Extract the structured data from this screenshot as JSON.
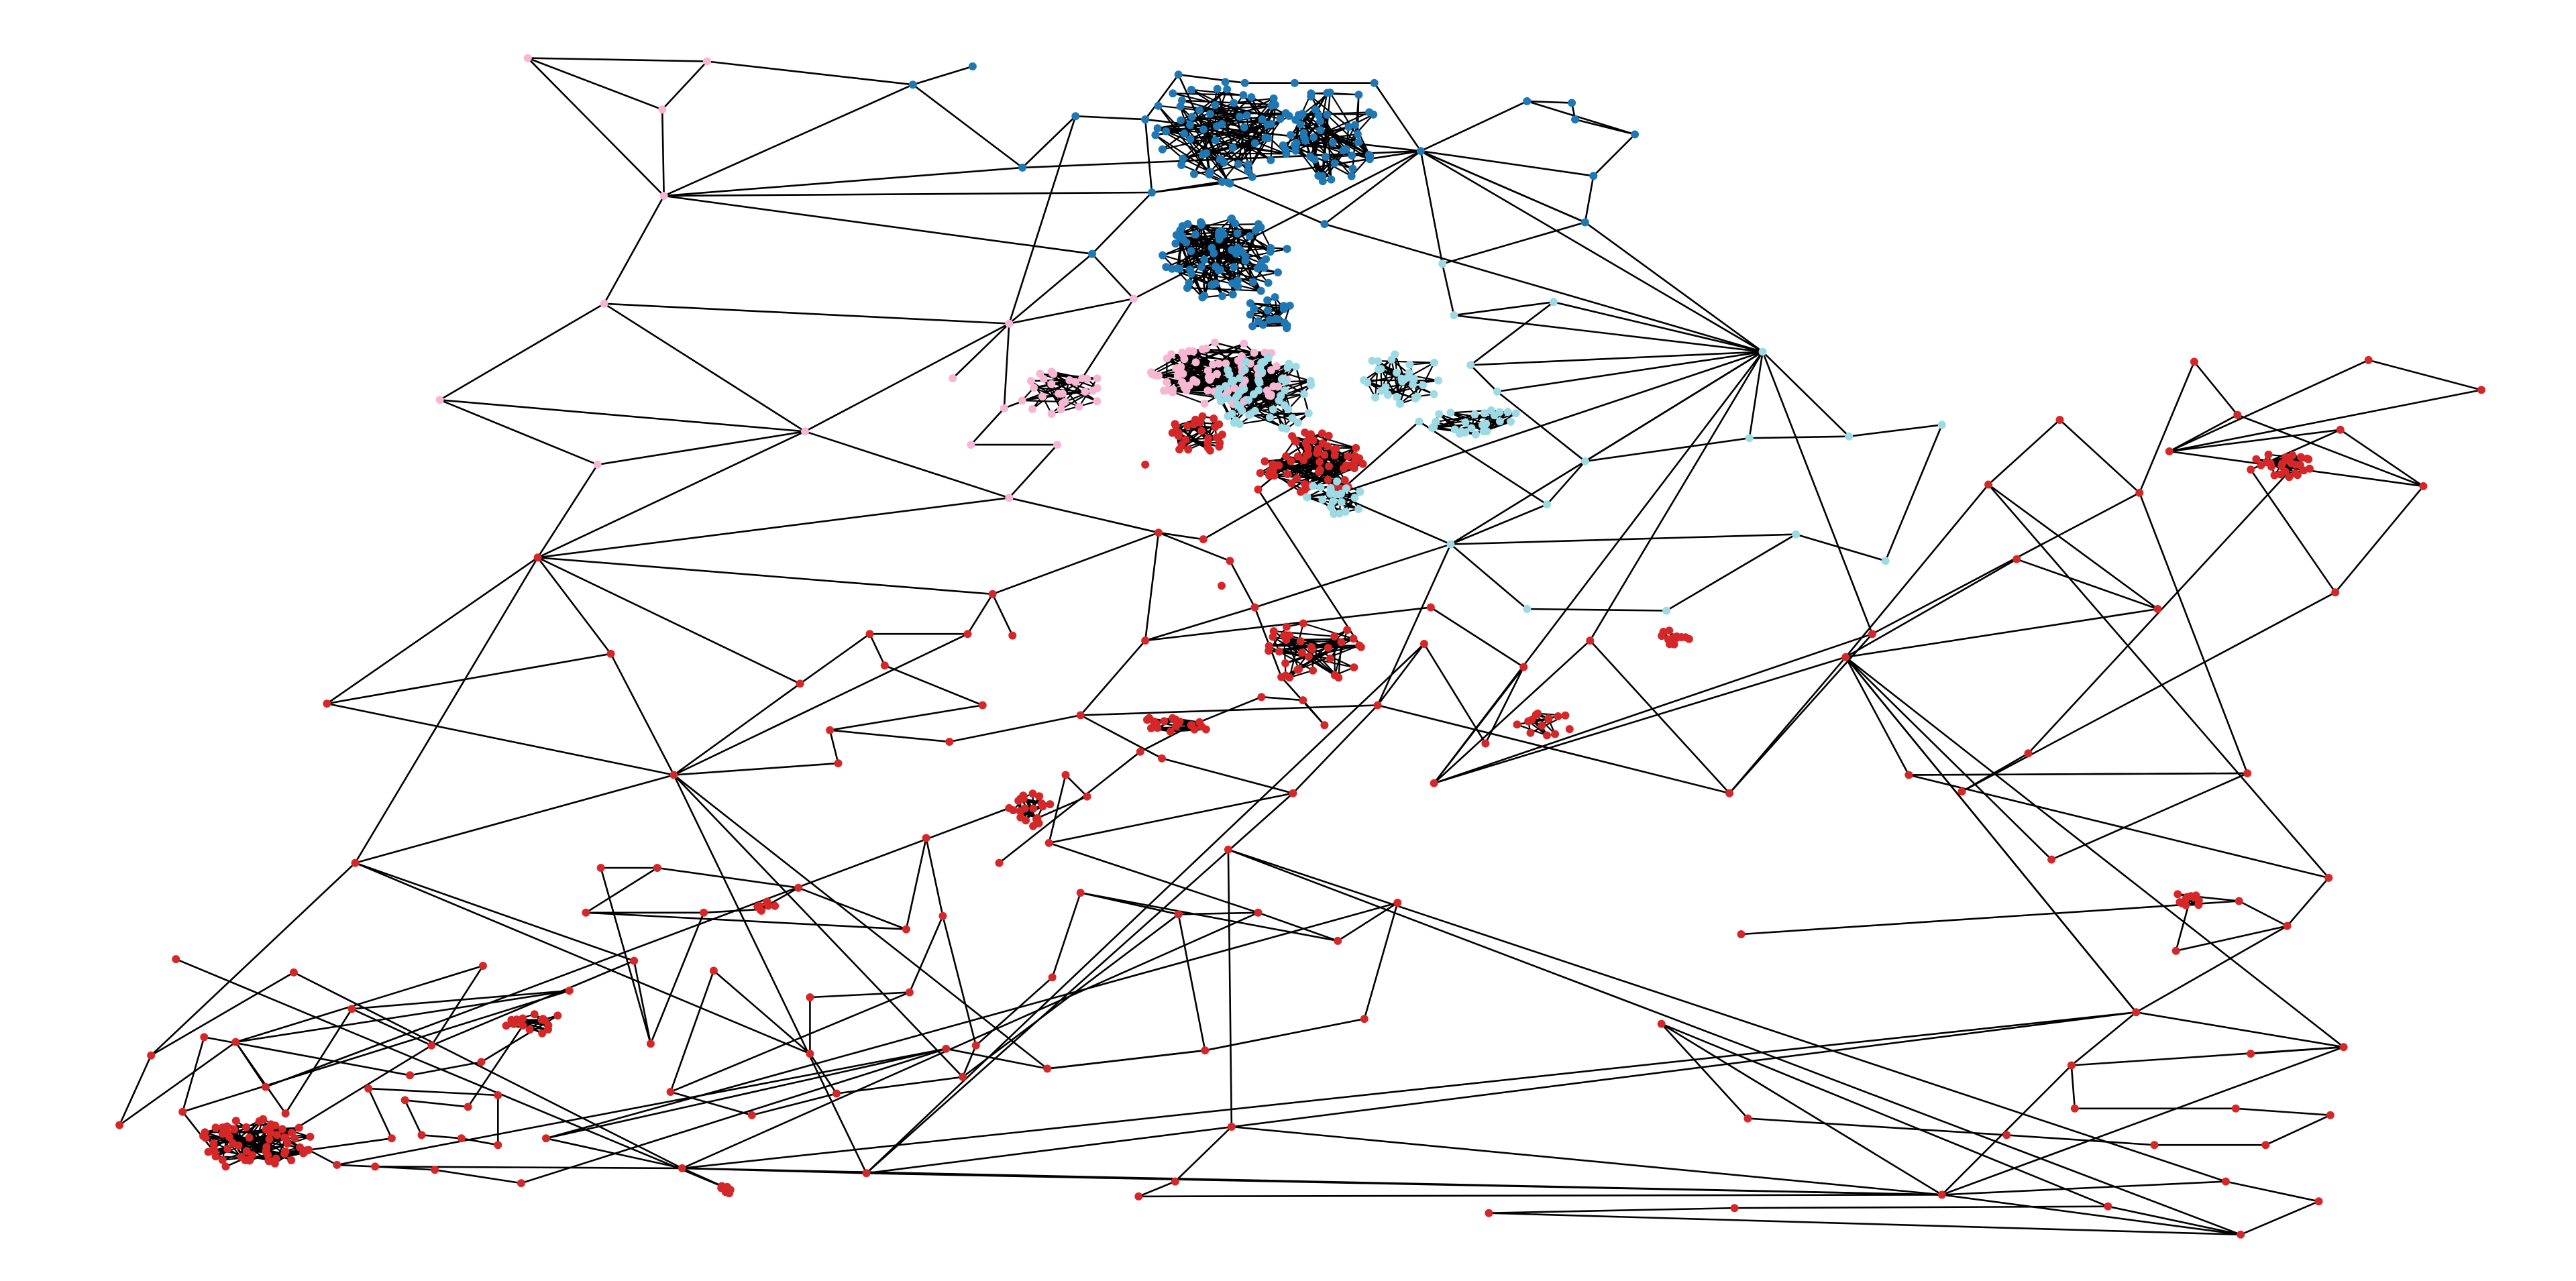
{
  "figure": {
    "background": "#ffffff",
    "edge_color": "#000000",
    "community_colors": {
      "dark_blue": "#1f77b4",
      "light_blue": "#9edae5",
      "pink": "#f7b6d2",
      "red": "#d62728"
    }
  }
}
